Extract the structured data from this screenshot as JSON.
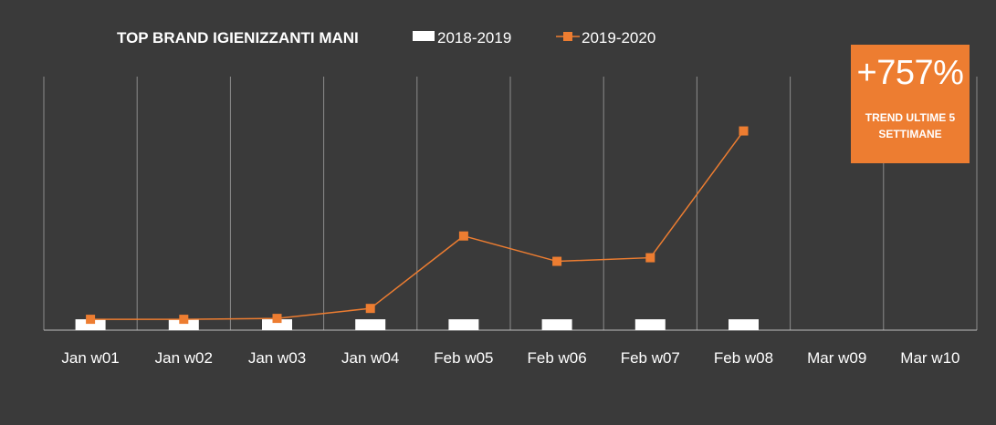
{
  "chart_data": {
    "type": "bar",
    "title": "TOP BRAND IGIENIZZANTI MANI",
    "categories": [
      "Jan w01",
      "Jan w02",
      "Jan w03",
      "Jan w04",
      "Feb w05",
      "Feb w06",
      "Feb w07",
      "Feb w08",
      "Mar w09",
      "Mar w10"
    ],
    "series": [
      {
        "name": "2018-2019",
        "kind": "bar",
        "values": [
          6,
          6,
          6,
          6,
          6,
          6,
          6,
          6,
          null,
          null
        ],
        "color": "#ffffff"
      },
      {
        "name": "2019-2020",
        "kind": "line",
        "marker": "square",
        "values": [
          6,
          6,
          6.5,
          12,
          52,
          38,
          40,
          110,
          null,
          null
        ],
        "color": "#ed7d31"
      }
    ],
    "ylim": [
      0,
      140
    ],
    "grid": "vertical",
    "legend": "top"
  },
  "badge": {
    "value": "+757%",
    "label": "TREND ULTIME 5 SETTIMANE",
    "color": "#ed7d31"
  },
  "colors": {
    "background": "#3a3a3a",
    "gridline": "#8c8c8c",
    "axis": "#bfbfbf"
  }
}
